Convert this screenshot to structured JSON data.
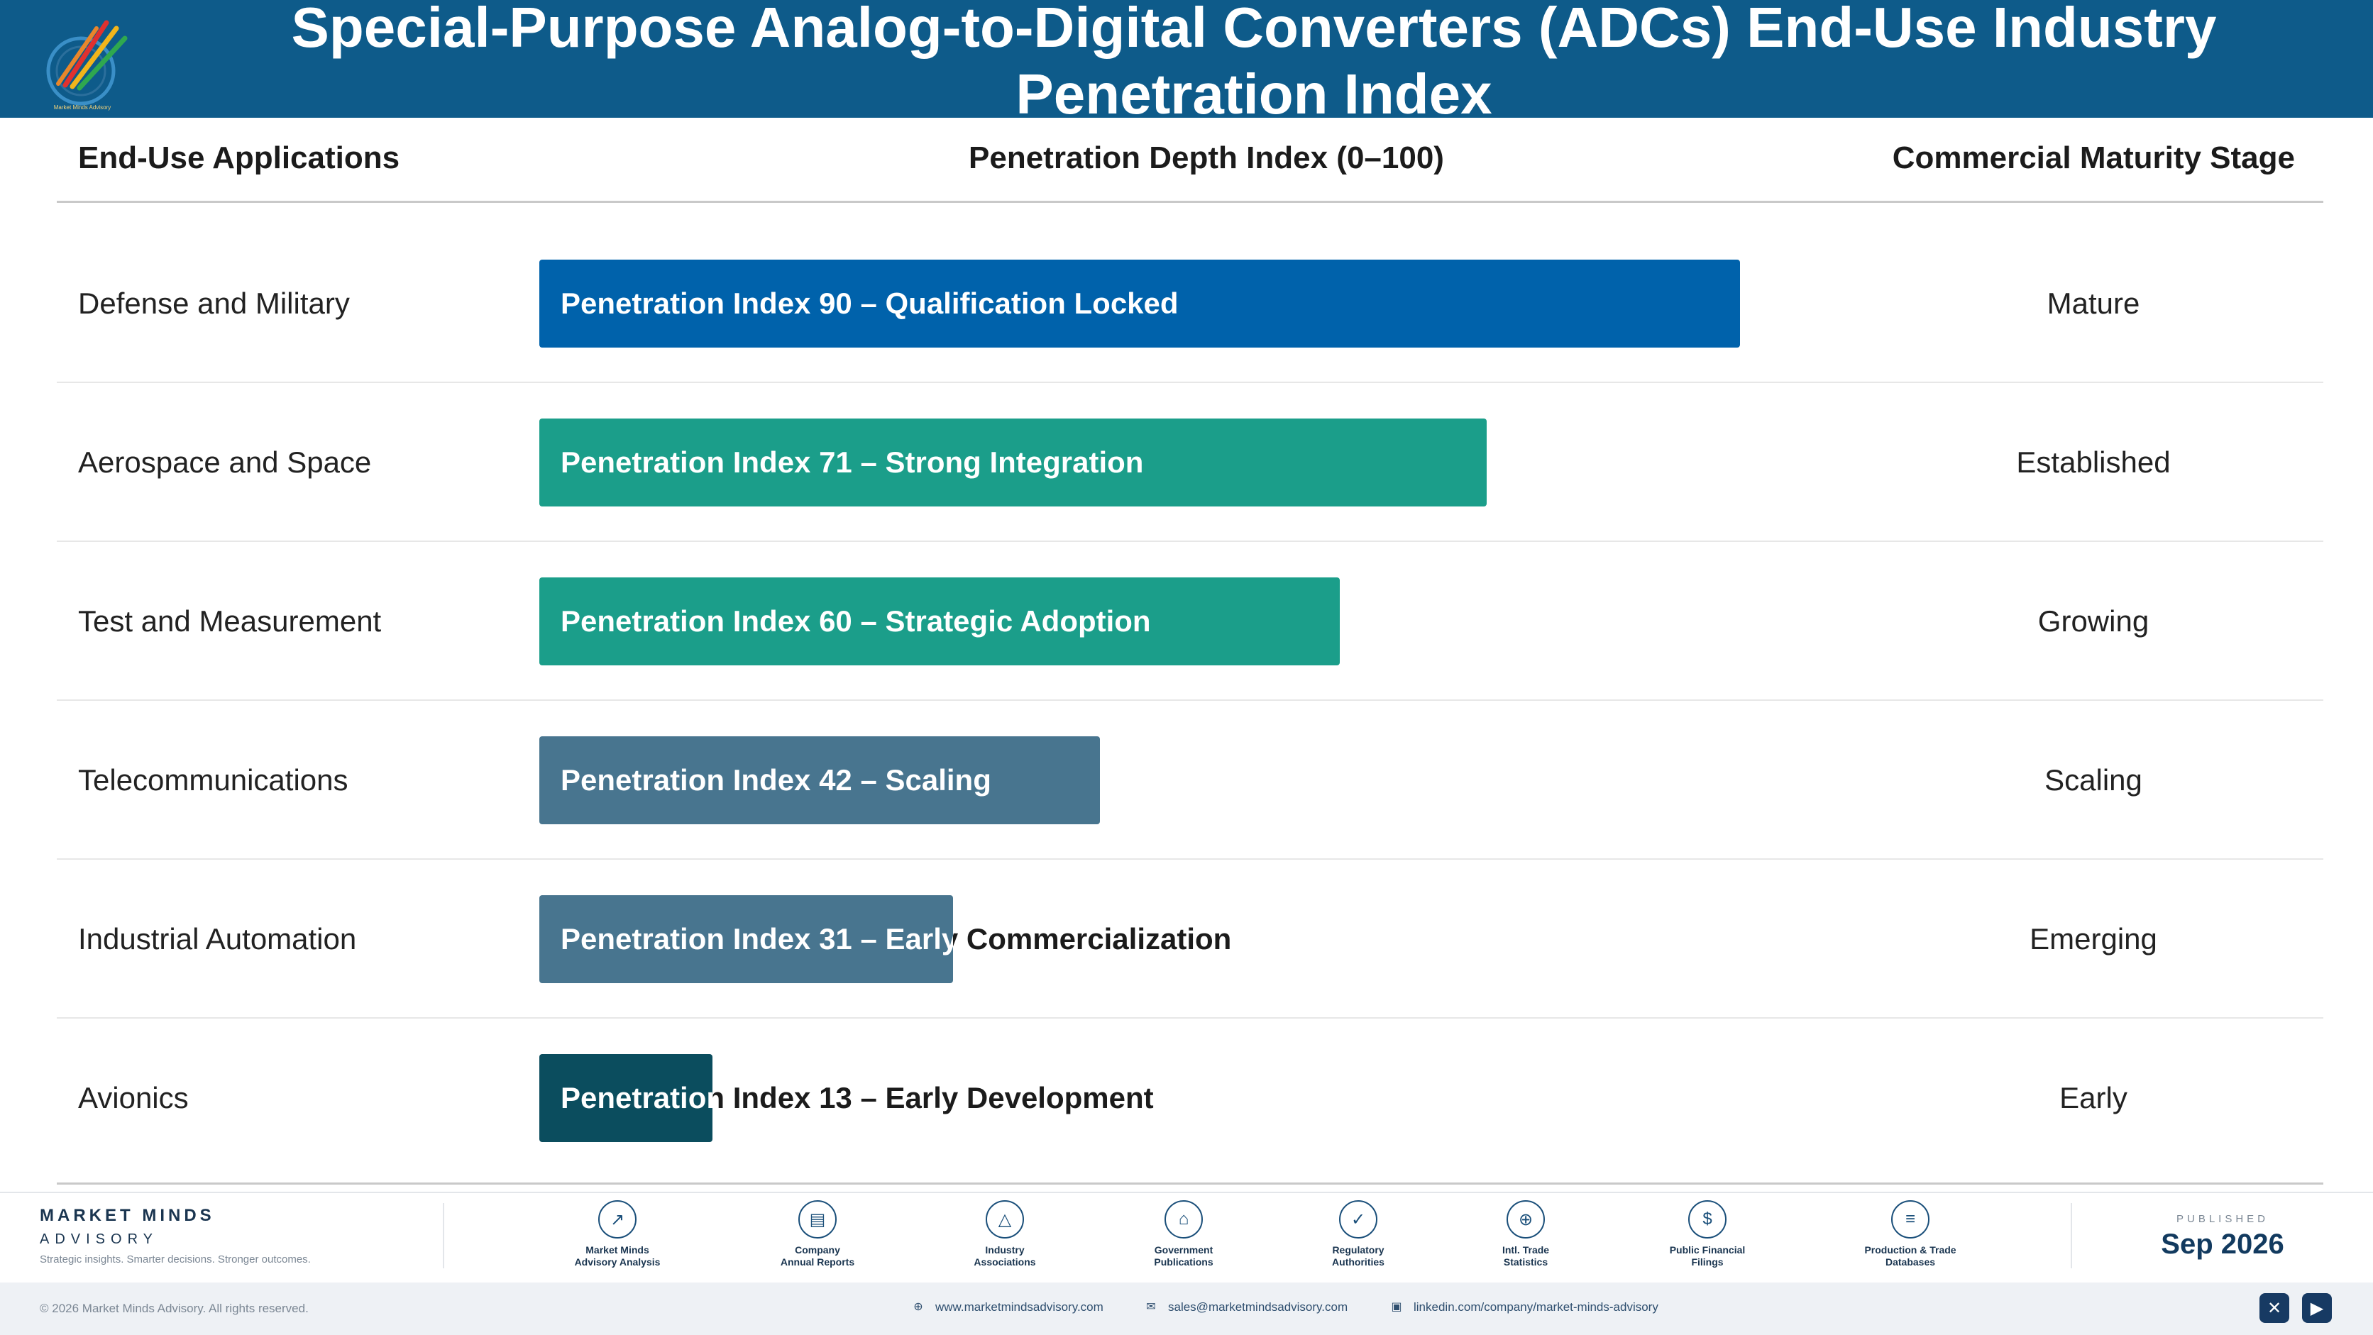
{
  "header": {
    "title": "Special-Purpose Analog-to-Digital Converters (ADCs) End-Use Industry Penetration Index",
    "logo_text": "Market Minds Advisory"
  },
  "columns": {
    "applications": "End-Use Applications",
    "depth": "Penetration Depth Index (0–100)",
    "stage": "Commercial Maturity Stage"
  },
  "chart_data": {
    "type": "bar",
    "orientation": "horizontal",
    "title": "Special-Purpose Analog-to-Digital Converters (ADCs) End-Use Industry Penetration Index",
    "xlabel": "Penetration Depth Index (0–100)",
    "xlim": [
      0,
      100
    ],
    "categories": [
      "Defense and Military",
      "Aerospace and Space",
      "Test and Measurement",
      "Telecommunications",
      "Industrial Automation",
      "Avionics"
    ],
    "values": [
      90,
      71,
      60,
      42,
      31,
      13
    ],
    "bar_labels": [
      "Penetration Index 90 – Qualification Locked",
      "Penetration Index 71 – Strong Integration",
      "Penetration Index 60 – Strategic Adoption",
      "Penetration Index 42 – Scaling",
      "Penetration Index 31 – Early Commercialization",
      "Penetration Index 13 – Early Development"
    ],
    "stages": [
      "Mature",
      "Established",
      "Growing",
      "Scaling",
      "Emerging",
      "Early"
    ],
    "colors": [
      "#0062ab",
      "#1b9e8a",
      "#1b9e8a",
      "#48758f",
      "#48758f",
      "#0b4d5e"
    ]
  },
  "footer": {
    "brand_name": "MARKET MINDS",
    "brand_sub": "ADVISORY",
    "tagline": "Strategic insights. Smarter decisions. Stronger outcomes.",
    "sources": [
      {
        "line1": "Market Minds",
        "line2": "Advisory Analysis",
        "icon": "chart-line-icon"
      },
      {
        "line1": "Company",
        "line2": "Annual Reports",
        "icon": "document-icon"
      },
      {
        "line1": "Industry",
        "line2": "Associations",
        "icon": "network-icon"
      },
      {
        "line1": "Government",
        "line2": "Publications",
        "icon": "government-building-icon"
      },
      {
        "line1": "Regulatory",
        "line2": "Authorities",
        "icon": "shield-check-icon"
      },
      {
        "line1": "Intl. Trade",
        "line2": "Statistics",
        "icon": "globe-icon"
      },
      {
        "line1": "Public Financial",
        "line2": "Filings",
        "icon": "dollar-icon"
      },
      {
        "line1": "Production & Trade",
        "line2": "Databases",
        "icon": "database-icon"
      }
    ],
    "published_label": "PUBLISHED",
    "published_date": "Sep 2026",
    "copyright": "© 2026 Market Minds Advisory. All rights reserved.",
    "website": "www.marketmindsadvisory.com",
    "email": "sales@marketmindsadvisory.com",
    "linkedin": "linkedin.com/company/market-minds-advisory"
  }
}
